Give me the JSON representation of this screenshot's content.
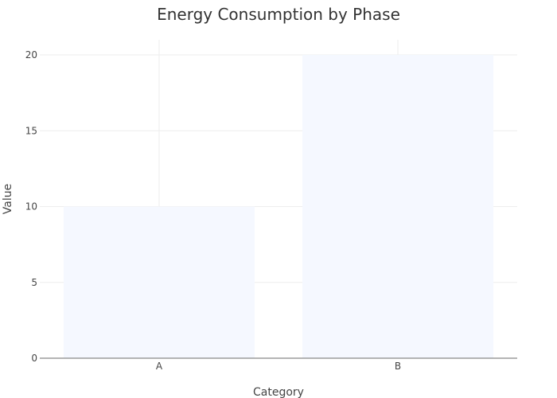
{
  "chart_data": {
    "type": "bar",
    "title": "Energy Consumption by Phase",
    "xlabel": "Category",
    "ylabel": "Value",
    "categories": [
      "A",
      "B"
    ],
    "values": [
      10,
      20
    ],
    "ylim": [
      0,
      21
    ],
    "yticks": [
      0,
      5,
      10,
      15,
      20
    ],
    "grid": true,
    "bar_color": "#f5f8ff",
    "grid_color": "#eeeeee",
    "axis_color": "#888888"
  }
}
